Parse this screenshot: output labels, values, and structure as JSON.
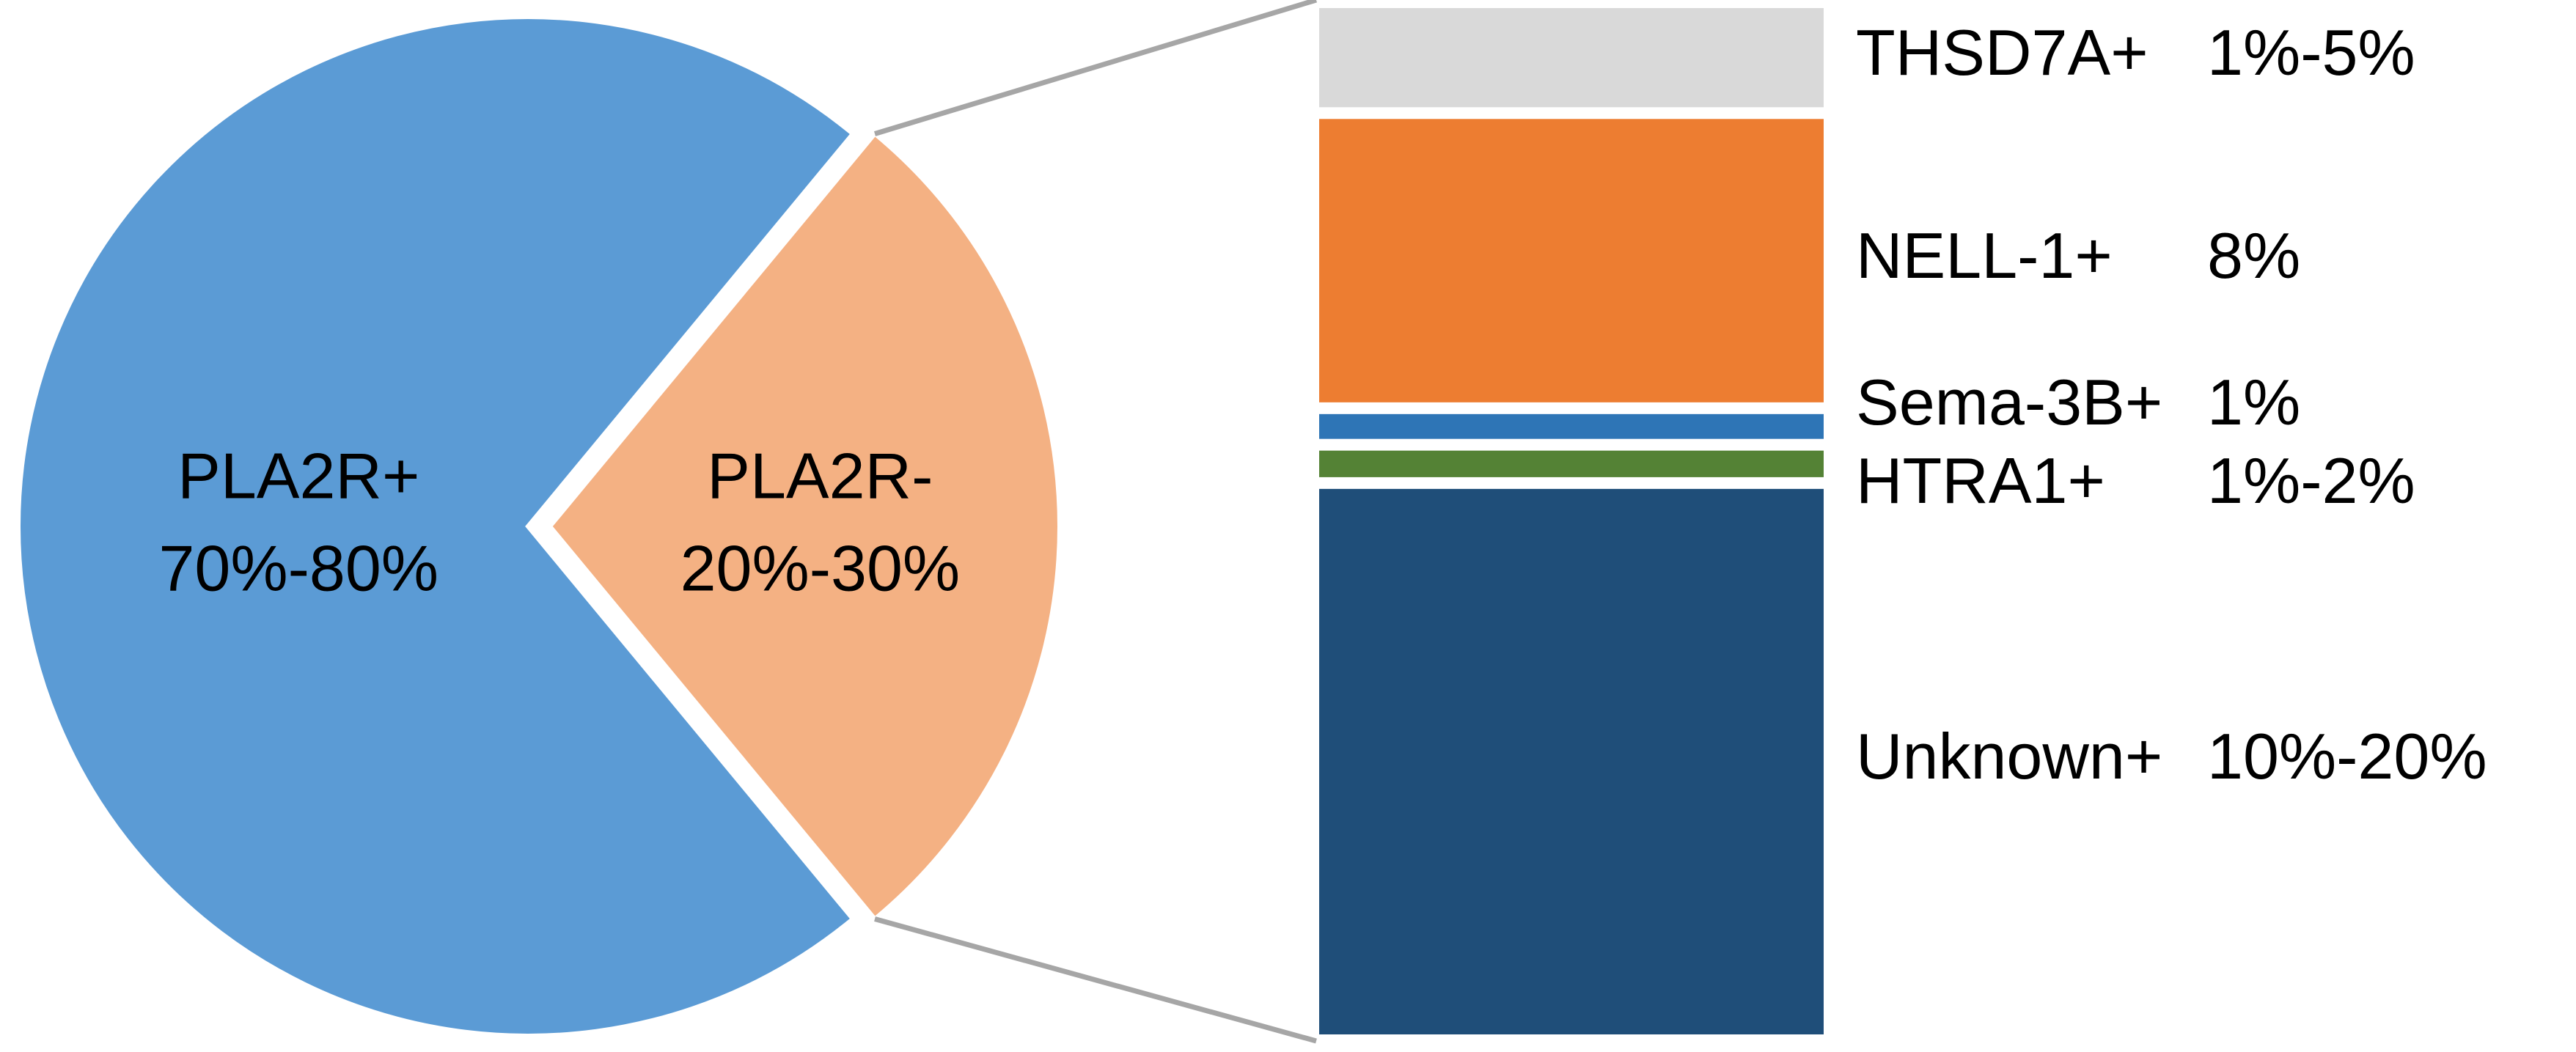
{
  "chart_data": {
    "type": "pie",
    "categories": [
      "PLA2R+",
      "PLA2R-"
    ],
    "range_labels": [
      "70%-80%",
      "20%-30%"
    ],
    "values": [
      72,
      28
    ],
    "colors": [
      "#5b9bd5",
      "#f4b183"
    ],
    "breakdown": {
      "type": "bar",
      "categories": [
        "THSD7A+",
        "NELL-1+",
        "Sema-3B+",
        "HTRA1+",
        "Unknown+"
      ],
      "range_labels": [
        "1%-5%",
        "8%",
        "1%",
        "1%-2%",
        "10%-20%"
      ],
      "values": [
        2.8,
        8,
        0.7,
        0.75,
        15.4
      ],
      "colors": [
        "#d9d9d9",
        "#ed7d31",
        "#2e75b6",
        "#548235",
        "#1f4e79"
      ]
    }
  }
}
